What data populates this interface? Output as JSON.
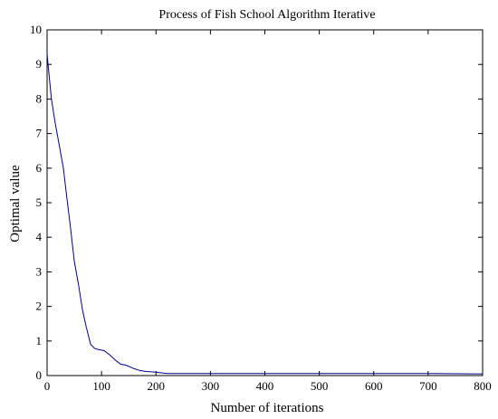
{
  "chart_data": {
    "type": "line",
    "title": "Process of Fish School Algorithm Iterative",
    "xlabel": "Number of iterations",
    "ylabel": "Optimal value",
    "xlim": [
      0,
      800
    ],
    "ylim": [
      0,
      10
    ],
    "xticks": [
      0,
      100,
      200,
      300,
      400,
      500,
      600,
      700,
      800
    ],
    "yticks": [
      0,
      1,
      2,
      3,
      4,
      5,
      6,
      7,
      8,
      9,
      10
    ],
    "grid": false,
    "series": [
      {
        "color": "#00008b",
        "x": [
          0,
          3,
          8,
          15,
          22,
          30,
          36,
          42,
          50,
          58,
          65,
          72,
          80,
          88,
          95,
          105,
          115,
          125,
          135,
          145,
          160,
          170,
          180,
          200,
          220,
          300,
          400,
          500,
          600,
          700,
          780,
          800
        ],
        "y": [
          9.3,
          8.8,
          8.0,
          7.3,
          6.7,
          6.0,
          5.2,
          4.4,
          3.3,
          2.6,
          1.9,
          1.4,
          0.9,
          0.78,
          0.75,
          0.72,
          0.6,
          0.45,
          0.33,
          0.3,
          0.2,
          0.15,
          0.12,
          0.1,
          0.06,
          0.06,
          0.06,
          0.06,
          0.06,
          0.06,
          0.05,
          0.05
        ]
      }
    ]
  }
}
